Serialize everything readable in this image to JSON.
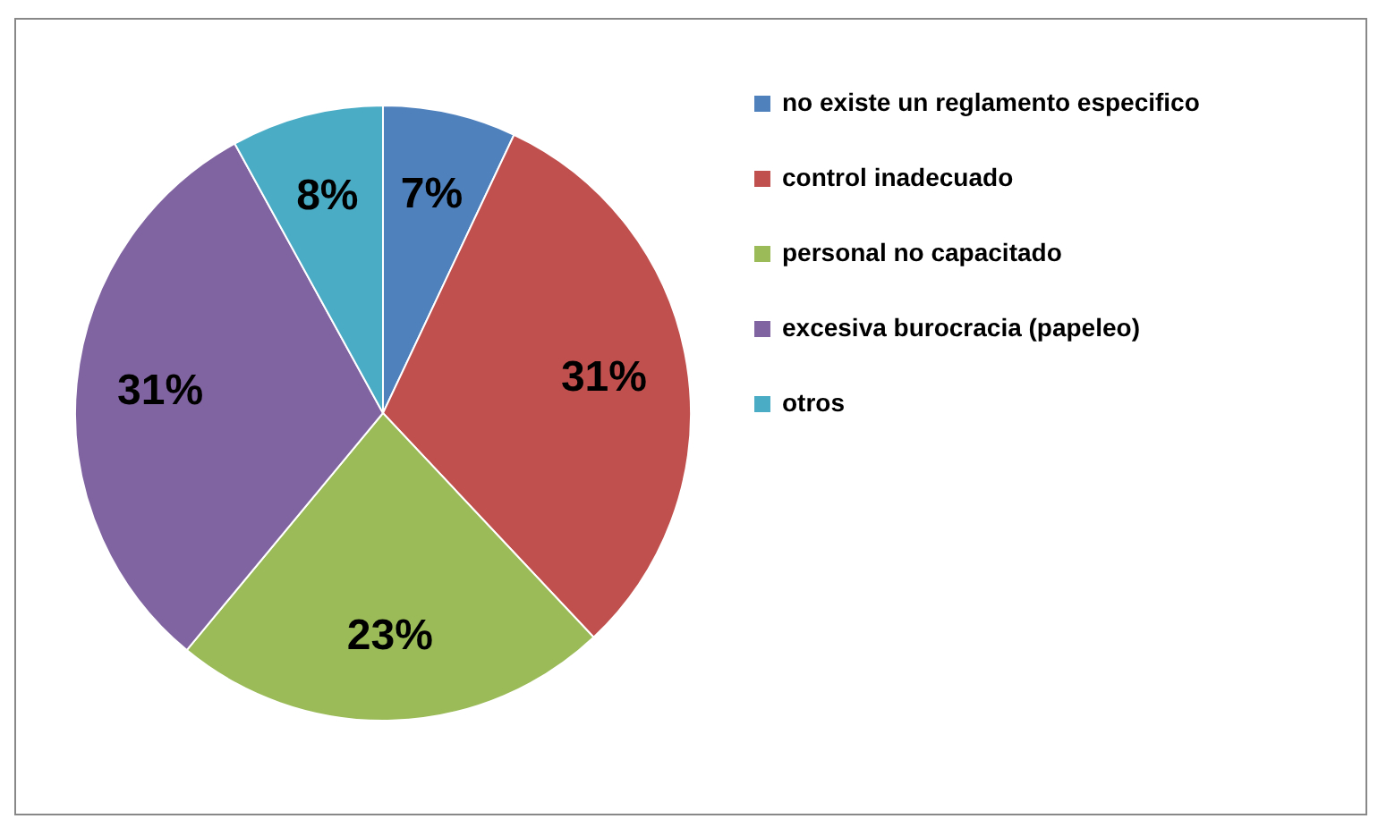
{
  "chart_data": {
    "type": "pie",
    "categories": [
      "no existe un reglamento especifico",
      "control inadecuado",
      "personal no capacitado",
      "excesiva burocracia (papeleo)",
      "otros"
    ],
    "values": [
      7,
      31,
      23,
      31,
      8
    ],
    "colors": [
      "#4f81bd",
      "#c0504d",
      "#9bbb59",
      "#8064a2",
      "#4bacc6"
    ],
    "value_labels": [
      "7%",
      "31%",
      "23%",
      "31%",
      "8%"
    ],
    "legend": "right"
  }
}
